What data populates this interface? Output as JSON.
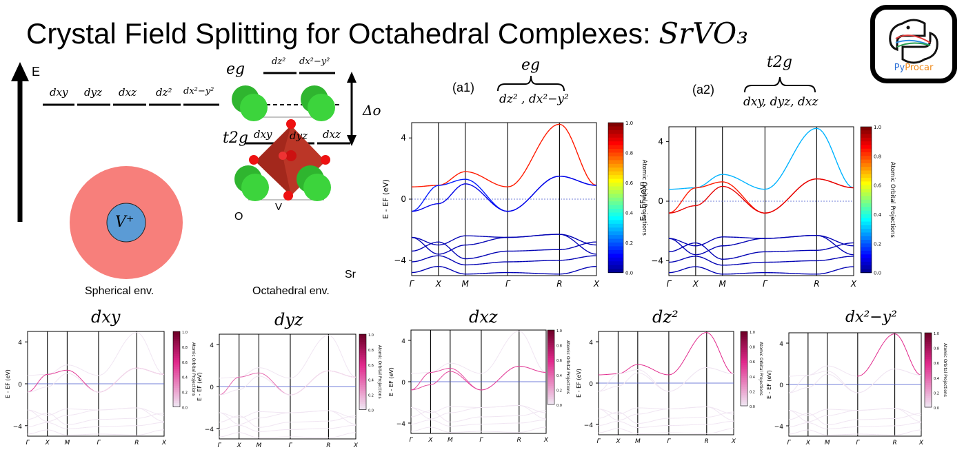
{
  "title": {
    "text": "Crystal Field Splitting for Octahedral Complexes: ",
    "formula": "SrVO₃"
  },
  "logo": {
    "text_py": "Py",
    "text_procar": "Procar",
    "icon": "python-logo-icon"
  },
  "energy_axis": {
    "label": "E"
  },
  "spherical": {
    "levels": [
      "dxy",
      "dyz",
      "dxz",
      "dz²",
      "dx²−y²"
    ],
    "ion": "V⁺",
    "caption": "Spherical env."
  },
  "octahedral": {
    "eg_label": "eg",
    "t2g_label": "t2g",
    "eg_levels": [
      "dz²",
      "dx²−y²"
    ],
    "t2g_levels": [
      "dxy",
      "dyz",
      "dxz"
    ],
    "delta_label": "Δo",
    "atom_labels": {
      "O": "O",
      "V": "V",
      "Sr": "Sr"
    },
    "caption": "Octahedral env."
  },
  "panel_a1": {
    "tag": "(a1)",
    "header": "eg",
    "members": "dz² , dx²−y²"
  },
  "panel_a2": {
    "tag": "(a2)",
    "header": "t2g",
    "members": "dxy, dyz, dxz"
  },
  "plot_common": {
    "ylabel": "E - E",
    "ylabel_sub": "F",
    "ylabel_unit": " (eV)",
    "colorbar_label": "Atomic Orbital Projections",
    "colorbar_ticks": [
      "0.0",
      "0.2",
      "0.4",
      "0.6",
      "0.8",
      "1.0"
    ],
    "yticks": [
      "4",
      "0",
      "−4"
    ],
    "kpath": [
      "Γ",
      "X",
      "M",
      "Γ",
      "R",
      "X"
    ]
  },
  "small_titles": [
    "dxy",
    "dyz",
    "dxz",
    "dz²",
    "dx²−y²"
  ],
  "chart_data": [
    {
      "type": "line",
      "title": "(a1) eg: dz², dx²−y²",
      "xlabel": "",
      "ylabel": "E - EF (eV)",
      "ylim": [
        -5,
        5
      ],
      "x": [
        "Γ",
        "X",
        "M",
        "Γ",
        "R",
        "X"
      ],
      "series": [
        {
          "name": "",
          "values": [
            0.8,
            0.9,
            1.8,
            0.8,
            4.9,
            0.9
          ]
        },
        {
          "name": "",
          "values": [
            -0.8,
            0.9,
            1.3,
            -0.8,
            1.5,
            0.9
          ]
        },
        {
          "name": "",
          "values": [
            -0.8,
            -0.3,
            1.0,
            -0.8,
            1.5,
            0.9
          ]
        }
      ],
      "colormap": "jet",
      "colorbar": [
        0,
        1
      ]
    },
    {
      "type": "line",
      "title": "(a2) t2g: dxy, dyz, dxz",
      "xlabel": "",
      "ylabel": "E - EF (eV)",
      "ylim": [
        -5,
        5
      ],
      "x": [
        "Γ",
        "X",
        "M",
        "Γ",
        "R",
        "X"
      ],
      "series": [
        {
          "name": "",
          "values": [
            -0.8,
            0.9,
            1.3,
            -0.8,
            1.5,
            0.9
          ]
        },
        {
          "name": "",
          "values": [
            -0.8,
            0.9,
            1.3,
            -0.8,
            1.5,
            0.9
          ]
        },
        {
          "name": "",
          "values": [
            0.8,
            0.9,
            1.8,
            0.8,
            4.9,
            0.9
          ]
        }
      ],
      "colormap": "jet",
      "colorbar": [
        0,
        1
      ]
    }
  ]
}
